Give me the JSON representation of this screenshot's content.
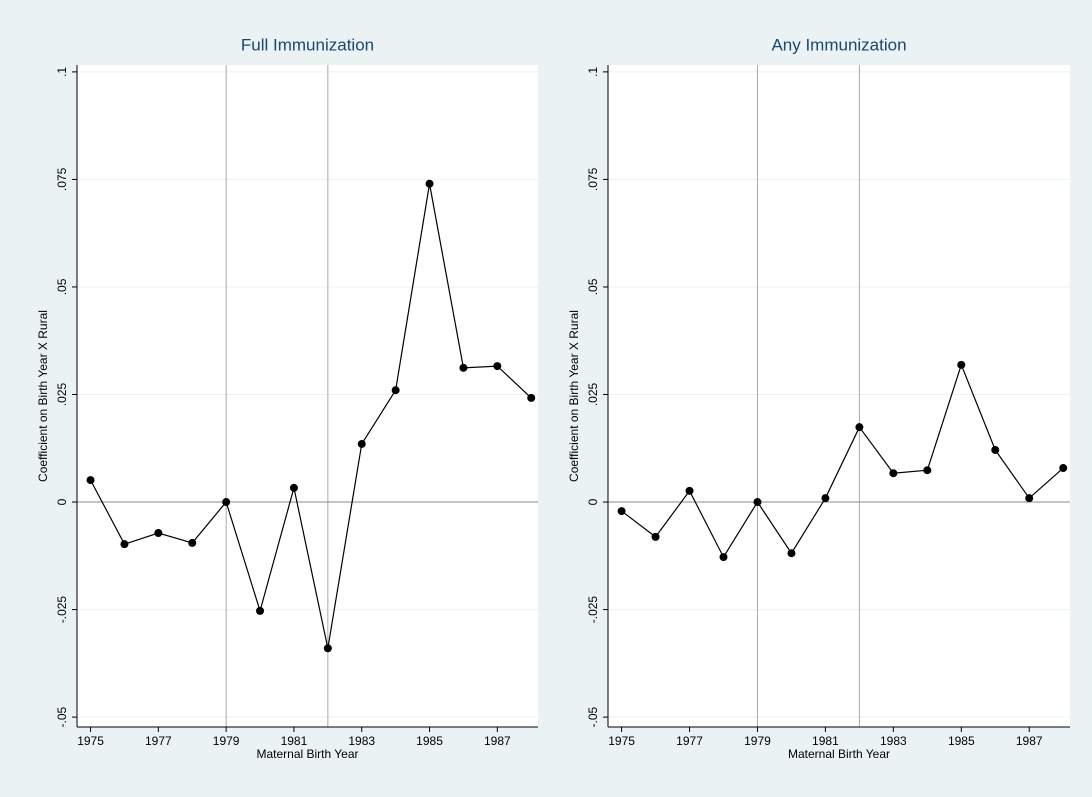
{
  "chart_data": [
    {
      "type": "line",
      "title": "Full Immunization",
      "xlabel": "Maternal Birth Year",
      "ylabel": "Coefficient on Birth Year X Rural",
      "x": [
        1975,
        1976,
        1977,
        1978,
        1979,
        1980,
        1981,
        1982,
        1983,
        1984,
        1985,
        1986,
        1987,
        1988
      ],
      "values": [
        0.0051,
        -0.0098,
        -0.0072,
        -0.0095,
        0,
        -0.0253,
        0.0033,
        -0.034,
        0.0135,
        0.026,
        0.074,
        0.0312,
        0.0316,
        0.0242
      ],
      "color": "#000000",
      "xlim": [
        1974.6,
        1988.2
      ],
      "ylim": [
        -0.0523,
        0.1016
      ],
      "xticks": [
        1975,
        1977,
        1979,
        1981,
        1983,
        1985,
        1987
      ],
      "yticks": [
        {
          "value": -0.05,
          "label": "-.05"
        },
        {
          "value": -0.025,
          "label": "-.025"
        },
        0,
        {
          "value": 0.025,
          "label": ".025"
        },
        {
          "value": 0.05,
          "label": ".05"
        },
        {
          "value": 0.075,
          "label": ".075"
        },
        {
          "value": 0.1,
          "label": ".1"
        }
      ],
      "grid": true,
      "vlines": [
        1979,
        1982
      ],
      "hline": 0
    },
    {
      "type": "line",
      "title": "Any Immunization",
      "xlabel": "Maternal Birth Year",
      "ylabel": "Coefficient on Birth Year X Rural",
      "x": [
        1975,
        1976,
        1977,
        1978,
        1979,
        1980,
        1981,
        1982,
        1983,
        1984,
        1985,
        1986,
        1987,
        1988
      ],
      "values": [
        -0.0021,
        -0.0081,
        0.0026,
        -0.0128,
        0,
        -0.0119,
        0.0009,
        0.0174,
        0.0067,
        0.0074,
        0.0319,
        0.0121,
        0.0009,
        0.0079
      ],
      "color": "#000000",
      "xlim": [
        1974.6,
        1988.2
      ],
      "ylim": [
        -0.0523,
        0.1016
      ],
      "xticks": [
        1975,
        1977,
        1979,
        1981,
        1983,
        1985,
        1987
      ],
      "yticks": [
        {
          "value": -0.05,
          "label": "-.05"
        },
        {
          "value": -0.025,
          "label": "-.025"
        },
        0,
        {
          "value": 0.025,
          "label": ".025"
        },
        {
          "value": 0.05,
          "label": ".05"
        },
        {
          "value": 0.075,
          "label": ".075"
        },
        {
          "value": 0.1,
          "label": ".1"
        }
      ],
      "grid": true,
      "vlines": [
        1979,
        1982
      ],
      "hline": 0
    }
  ]
}
